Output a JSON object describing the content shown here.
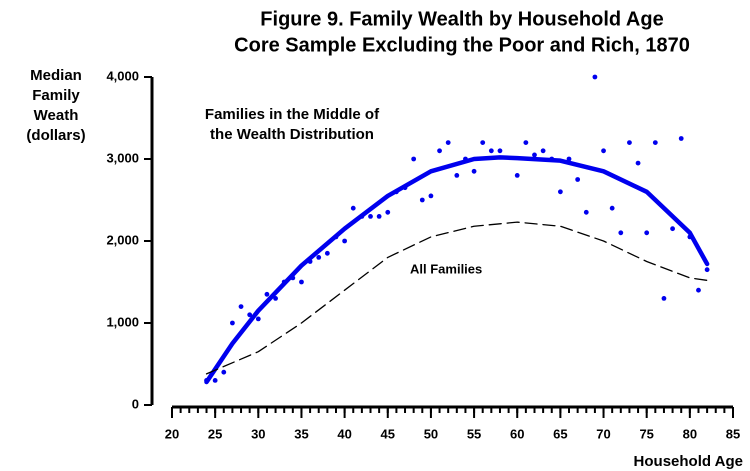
{
  "chart_data": {
    "type": "scatter",
    "title": "Figure 9.  Family Wealth by Household Age",
    "subtitle": "Core Sample Excluding the Poor and Rich, 1870",
    "y_label": [
      "Median",
      "Family",
      "Weath",
      "(dollars)"
    ],
    "x_label": "Household Age",
    "xlim": [
      20,
      85
    ],
    "xticks": [
      20,
      25,
      30,
      35,
      40,
      45,
      50,
      55,
      60,
      65,
      70,
      75,
      80,
      85
    ],
    "x_minor_step": 1,
    "ylim": [
      0,
      4000
    ],
    "yticks": [
      0,
      {
        "value": 1000,
        "label": "1,000"
      },
      {
        "value": 2000,
        "label": "2,000"
      },
      {
        "value": 3000,
        "label": "3,000"
      },
      {
        "value": 4000,
        "label": "4,000"
      }
    ],
    "series": [
      {
        "type": "scatter",
        "color": "#0000ee",
        "x": [
          24,
          25,
          26,
          27,
          28,
          29,
          30,
          31,
          32,
          33,
          34,
          35,
          36,
          37,
          38,
          39,
          40,
          41,
          42,
          43,
          44,
          45,
          46,
          47,
          48,
          49,
          50,
          51,
          52,
          53,
          54,
          55,
          56,
          57,
          58,
          60,
          61,
          62,
          63,
          64,
          65,
          66,
          67,
          68,
          69,
          70,
          71,
          72,
          73,
          74,
          75,
          76,
          77,
          78,
          79,
          80,
          81,
          82
        ],
        "values": [
          300,
          300,
          400,
          1000,
          1200,
          1100,
          1050,
          1350,
          1300,
          1500,
          1550,
          1500,
          1750,
          1800,
          1850,
          2050,
          2000,
          2400,
          2300,
          2300,
          2300,
          2350,
          2600,
          2650,
          3000,
          2500,
          2550,
          3100,
          3200,
          2800,
          3000,
          2850,
          3200,
          3100,
          3100,
          2800,
          3200,
          3050,
          3100,
          3000,
          2600,
          3000,
          2750,
          2350,
          4000,
          3100,
          2400,
          2100,
          3200,
          2950,
          2100,
          3200,
          1300,
          2150,
          3250,
          2050,
          1400,
          1650
        ]
      },
      {
        "type": "line",
        "color": "#0000ee",
        "dashed": false,
        "x": [
          24,
          27,
          30,
          35,
          40,
          45,
          50,
          55,
          58,
          60,
          65,
          70,
          75,
          80,
          82
        ],
        "values": [
          280,
          750,
          1150,
          1700,
          2150,
          2550,
          2850,
          3000,
          3020,
          3010,
          2980,
          2850,
          2600,
          2100,
          1720
        ]
      },
      {
        "type": "line",
        "color": "#000000",
        "dashed": true,
        "x": [
          24,
          30,
          35,
          40,
          45,
          50,
          55,
          60,
          65,
          70,
          75,
          80,
          82
        ],
        "values": [
          380,
          650,
          1000,
          1400,
          1800,
          2050,
          2180,
          2230,
          2180,
          2000,
          1750,
          1550,
          1520
        ]
      }
    ],
    "annotations": [
      {
        "text": [
          "Families in the Middle of",
          "the Wealth Distribution"
        ],
        "color": "#0000ee"
      },
      {
        "text": [
          "All Families"
        ],
        "color": "#000000"
      }
    ]
  }
}
